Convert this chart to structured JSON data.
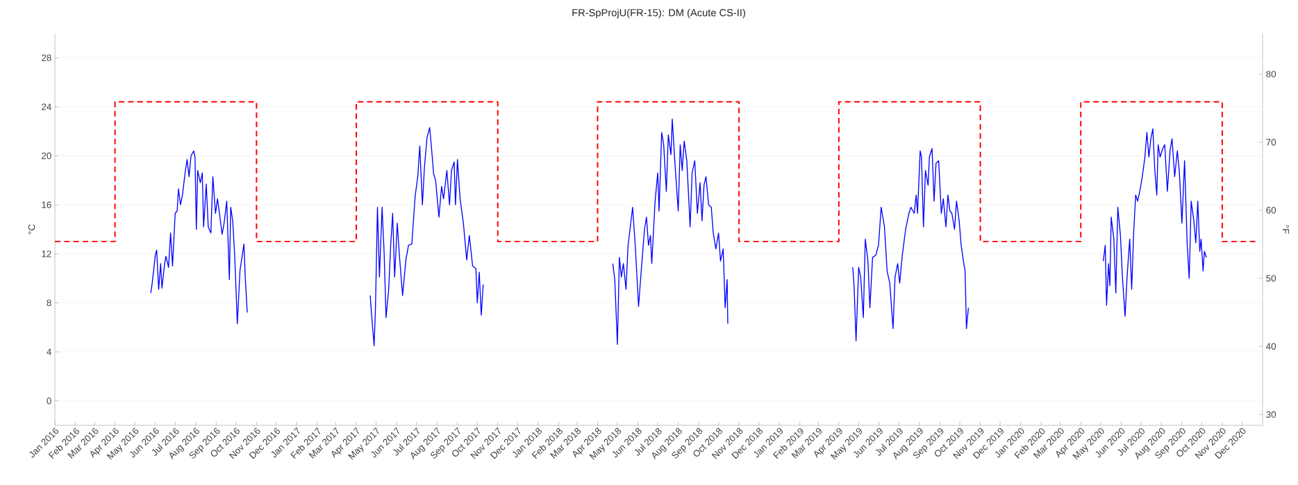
{
  "chart_data": {
    "type": "line",
    "title": "FR-SpProjU(FR-15): DM (Acute CS-II)",
    "ylabel": "°C",
    "y2label": "°F",
    "xlim": [
      "2016-01-01",
      "2021-01-01"
    ],
    "xticks": [
      {
        "value": "2016-01",
        "label": "Jan 2016"
      },
      {
        "value": "2016-02",
        "label": "Feb 2016"
      },
      {
        "value": "2016-03",
        "label": "Mar 2016"
      },
      {
        "value": "2016-04",
        "label": "Apr 2016"
      },
      {
        "value": "2016-05",
        "label": "May 2016"
      },
      {
        "value": "2016-06",
        "label": "Jun 2016"
      },
      {
        "value": "2016-07",
        "label": "Jul 2016"
      },
      {
        "value": "2016-08",
        "label": "Aug 2016"
      },
      {
        "value": "2016-09",
        "label": "Sep 2016"
      },
      {
        "value": "2016-10",
        "label": "Oct 2016"
      },
      {
        "value": "2016-11",
        "label": "Nov 2016"
      },
      {
        "value": "2016-12",
        "label": "Dec 2016"
      },
      {
        "value": "2017-01",
        "label": "Jan 2017"
      },
      {
        "value": "2017-02",
        "label": "Feb 2017"
      },
      {
        "value": "2017-03",
        "label": "Mar 2017"
      },
      {
        "value": "2017-04",
        "label": "Apr 2017"
      },
      {
        "value": "2017-05",
        "label": "May 2017"
      },
      {
        "value": "2017-06",
        "label": "Jun 2017"
      },
      {
        "value": "2017-07",
        "label": "Jul 2017"
      },
      {
        "value": "2017-08",
        "label": "Aug 2017"
      },
      {
        "value": "2017-09",
        "label": "Sep 2017"
      },
      {
        "value": "2017-10",
        "label": "Oct 2017"
      },
      {
        "value": "2017-11",
        "label": "Nov 2017"
      },
      {
        "value": "2017-12",
        "label": "Dec 2017"
      },
      {
        "value": "2018-01",
        "label": "Jan 2018"
      },
      {
        "value": "2018-02",
        "label": "Feb 2018"
      },
      {
        "value": "2018-03",
        "label": "Mar 2018"
      },
      {
        "value": "2018-04",
        "label": "Apr 2018"
      },
      {
        "value": "2018-05",
        "label": "May 2018"
      },
      {
        "value": "2018-06",
        "label": "Jun 2018"
      },
      {
        "value": "2018-07",
        "label": "Jul 2018"
      },
      {
        "value": "2018-08",
        "label": "Aug 2018"
      },
      {
        "value": "2018-09",
        "label": "Sep 2018"
      },
      {
        "value": "2018-10",
        "label": "Oct 2018"
      },
      {
        "value": "2018-11",
        "label": "Nov 2018"
      },
      {
        "value": "2018-12",
        "label": "Dec 2018"
      },
      {
        "value": "2019-01",
        "label": "Jan 2019"
      },
      {
        "value": "2019-02",
        "label": "Feb 2019"
      },
      {
        "value": "2019-03",
        "label": "Mar 2019"
      },
      {
        "value": "2019-04",
        "label": "Apr 2019"
      },
      {
        "value": "2019-05",
        "label": "May 2019"
      },
      {
        "value": "2019-06",
        "label": "Jun 2019"
      },
      {
        "value": "2019-07",
        "label": "Jul 2019"
      },
      {
        "value": "2019-08",
        "label": "Aug 2019"
      },
      {
        "value": "2019-09",
        "label": "Sep 2019"
      },
      {
        "value": "2019-10",
        "label": "Oct 2019"
      },
      {
        "value": "2019-11",
        "label": "Nov 2019"
      },
      {
        "value": "2019-12",
        "label": "Dec 2019"
      },
      {
        "value": "2020-01",
        "label": "Jan 2020"
      },
      {
        "value": "2020-02",
        "label": "Feb 2020"
      },
      {
        "value": "2020-03",
        "label": "Mar 2020"
      },
      {
        "value": "2020-04",
        "label": "Apr 2020"
      },
      {
        "value": "2020-05",
        "label": "May 2020"
      },
      {
        "value": "2020-06",
        "label": "Jun 2020"
      },
      {
        "value": "2020-07",
        "label": "Jul 2020"
      },
      {
        "value": "2020-08",
        "label": "Aug 2020"
      },
      {
        "value": "2020-09",
        "label": "Sep 2020"
      },
      {
        "value": "2020-10",
        "label": "Oct 2020"
      },
      {
        "value": "2020-11",
        "label": "Nov 2020"
      },
      {
        "value": "2020-12",
        "label": "Dec 2020"
      }
    ],
    "ylim": [
      -2,
      30
    ],
    "yticks": [
      0,
      4,
      8,
      12,
      16,
      20,
      24,
      28
    ],
    "y2lim": [
      28.4,
      86
    ],
    "y2ticks": [
      30,
      40,
      50,
      60,
      70,
      80
    ],
    "grid": "y",
    "series": [
      {
        "type": "step",
        "line_style": "dashed",
        "color": "#ff0000",
        "x": [
          "2016-01-01",
          "2016-04-01",
          "2016-11-01",
          "2017-04-01",
          "2017-11-01",
          "2018-04-01",
          "2018-11-01",
          "2019-04-01",
          "2019-11-01",
          "2020-04-01",
          "2020-11-01",
          "2020-12-22"
        ],
        "values": [
          13,
          24.4,
          13,
          24.4,
          13,
          24.4,
          13,
          24.4,
          13,
          24.4,
          13,
          13
        ]
      },
      {
        "color": "#0000ff",
        "x": [
          "2016-05-25",
          "2016-05-27",
          "2016-06-01",
          "2016-06-03",
          "2016-06-06",
          "2016-06-09",
          "2016-06-11",
          "2016-06-15",
          "2016-06-17",
          "2016-06-21",
          "2016-06-24",
          "2016-06-27",
          "2016-07-01",
          "2016-07-04",
          "2016-07-06",
          "2016-07-09",
          "2016-07-12",
          "2016-07-16",
          "2016-07-19",
          "2016-07-22",
          "2016-07-25",
          "2016-07-29",
          "2016-07-31",
          "2016-08-02",
          "2016-08-04",
          "2016-08-08",
          "2016-08-11",
          "2016-08-13",
          "2016-08-17",
          "2016-08-20",
          "2016-08-24",
          "2016-08-27",
          "2016-08-31",
          "2016-09-03",
          "2016-09-06",
          "2016-09-10",
          "2016-09-13",
          "2016-09-17",
          "2016-09-21",
          "2016-09-23",
          "2016-09-26",
          "2016-09-29",
          "2016-10-03",
          "2016-10-07",
          "2016-10-13",
          "2016-10-15",
          "2016-10-18"
        ],
        "values": [
          8.8,
          9.5,
          11.9,
          12.3,
          9.1,
          11.2,
          9.2,
          11.2,
          11.8,
          10.9,
          13.7,
          11.0,
          15.3,
          15.5,
          17.3,
          16.0,
          16.8,
          18.6,
          19.7,
          18.3,
          20.0,
          20.4,
          19.9,
          14.0,
          18.8,
          17.8,
          18.6,
          14.2,
          17.7,
          14.2,
          13.7,
          18.3,
          15.3,
          16.5,
          15.3,
          13.6,
          14.5,
          16.3,
          9.9,
          15.8,
          14.7,
          11.9,
          6.3,
          10.6,
          12.8,
          10.1,
          7.2
        ]
      },
      {
        "color": "#0000ff",
        "x": [
          "2017-04-22",
          "2017-04-24",
          "2017-04-28",
          "2017-04-30",
          "2017-05-03",
          "2017-05-06",
          "2017-05-10",
          "2017-05-13",
          "2017-05-16",
          "2017-05-20",
          "2017-05-23",
          "2017-05-26",
          "2017-05-29",
          "2017-06-02",
          "2017-06-05",
          "2017-06-10",
          "2017-06-15",
          "2017-06-19",
          "2017-06-24",
          "2017-06-29",
          "2017-07-03",
          "2017-07-06",
          "2017-07-10",
          "2017-07-13",
          "2017-07-17",
          "2017-07-21",
          "2017-07-24",
          "2017-07-27",
          "2017-07-30",
          "2017-08-04",
          "2017-08-08",
          "2017-08-11",
          "2017-08-16",
          "2017-08-20",
          "2017-08-23",
          "2017-08-27",
          "2017-08-29",
          "2017-09-01",
          "2017-09-05",
          "2017-09-10",
          "2017-09-15",
          "2017-09-19",
          "2017-09-24",
          "2017-09-29",
          "2017-10-01",
          "2017-10-04",
          "2017-10-07",
          "2017-10-10"
        ],
        "values": [
          8.6,
          7.1,
          4.5,
          7.6,
          15.8,
          10.1,
          15.8,
          12.2,
          6.8,
          9.1,
          12.7,
          15.3,
          10.1,
          14.5,
          12.0,
          8.6,
          11.5,
          12.7,
          12.8,
          16.7,
          18.3,
          20.8,
          16.0,
          19.0,
          21.5,
          22.3,
          20.5,
          18.5,
          18.0,
          15.0,
          17.5,
          16.5,
          18.8,
          16.0,
          18.8,
          19.5,
          16.0,
          19.7,
          16.5,
          14.5,
          11.5,
          13.5,
          11.0,
          10.8,
          8.0,
          10.5,
          7.0,
          9.5
        ]
      },
      {
        "color": "#0000ff",
        "x": [
          "2018-04-24",
          "2018-04-27",
          "2018-05-01",
          "2018-05-04",
          "2018-05-07",
          "2018-05-10",
          "2018-05-14",
          "2018-05-17",
          "2018-05-24",
          "2018-05-28",
          "2018-06-02",
          "2018-06-06",
          "2018-06-11",
          "2018-06-14",
          "2018-06-17",
          "2018-06-20",
          "2018-06-22",
          "2018-06-27",
          "2018-07-01",
          "2018-07-03",
          "2018-07-07",
          "2018-07-10",
          "2018-07-14",
          "2018-07-17",
          "2018-07-21",
          "2018-07-23",
          "2018-07-27",
          "2018-08-01",
          "2018-08-04",
          "2018-08-07",
          "2018-08-10",
          "2018-08-14",
          "2018-08-19",
          "2018-08-22",
          "2018-08-26",
          "2018-08-30",
          "2018-09-03",
          "2018-09-06",
          "2018-09-09",
          "2018-09-12",
          "2018-09-16",
          "2018-09-20",
          "2018-09-23",
          "2018-09-27",
          "2018-10-01",
          "2018-10-04",
          "2018-10-08",
          "2018-10-11",
          "2018-10-14",
          "2018-10-15"
        ],
        "values": [
          11.2,
          9.9,
          4.6,
          11.7,
          10.1,
          11.2,
          9.1,
          12.6,
          15.8,
          12.7,
          7.7,
          10.6,
          14.0,
          15.0,
          12.7,
          13.5,
          11.2,
          16.3,
          18.6,
          15.5,
          21.9,
          20.9,
          17.1,
          21.7,
          20.1,
          23.0,
          19.4,
          15.5,
          20.9,
          18.8,
          21.2,
          19.6,
          14.2,
          18.6,
          19.6,
          15.3,
          17.8,
          14.7,
          17.6,
          18.3,
          16.0,
          15.8,
          13.7,
          12.4,
          13.7,
          11.4,
          12.4,
          7.6,
          9.9,
          6.3
        ]
      },
      {
        "color": "#0000ff",
        "x": [
          "2019-04-22",
          "2019-04-24",
          "2019-04-27",
          "2019-05-01",
          "2019-05-04",
          "2019-05-08",
          "2019-05-11",
          "2019-05-15",
          "2019-05-18",
          "2019-05-22",
          "2019-05-27",
          "2019-05-31",
          "2019-06-04",
          "2019-06-09",
          "2019-06-13",
          "2019-06-17",
          "2019-06-22",
          "2019-06-25",
          "2019-06-29",
          "2019-07-02",
          "2019-07-06",
          "2019-07-11",
          "2019-07-16",
          "2019-07-19",
          "2019-07-24",
          "2019-07-27",
          "2019-07-29",
          "2019-08-02",
          "2019-08-04",
          "2019-08-07",
          "2019-08-10",
          "2019-08-14",
          "2019-08-16",
          "2019-08-20",
          "2019-08-23",
          "2019-08-26",
          "2019-08-30",
          "2019-09-03",
          "2019-09-06",
          "2019-09-10",
          "2019-09-13",
          "2019-09-16",
          "2019-09-19",
          "2019-09-23",
          "2019-09-26",
          "2019-09-30",
          "2019-10-03",
          "2019-10-07",
          "2019-10-09",
          "2019-10-11",
          "2019-10-14"
        ],
        "values": [
          10.9,
          9.4,
          4.9,
          10.9,
          10.1,
          6.8,
          13.2,
          11.4,
          7.6,
          11.7,
          11.9,
          12.7,
          15.8,
          14.2,
          10.6,
          9.6,
          5.9,
          10.1,
          11.2,
          9.6,
          11.9,
          14.0,
          15.3,
          15.8,
          15.3,
          16.8,
          15.3,
          20.4,
          19.9,
          14.2,
          18.8,
          17.6,
          19.9,
          20.6,
          16.3,
          19.4,
          19.6,
          15.3,
          16.5,
          14.2,
          16.8,
          15.5,
          15.3,
          14.0,
          16.3,
          14.7,
          12.7,
          11.2,
          10.6,
          5.9,
          7.6
        ]
      },
      {
        "color": "#0000ff",
        "x": [
          "2020-05-05",
          "2020-05-08",
          "2020-05-10",
          "2020-05-13",
          "2020-05-15",
          "2020-05-17",
          "2020-05-21",
          "2020-05-24",
          "2020-05-27",
          "2020-05-31",
          "2020-06-03",
          "2020-06-07",
          "2020-06-10",
          "2020-06-14",
          "2020-06-17",
          "2020-06-20",
          "2020-06-23",
          "2020-06-26",
          "2020-06-30",
          "2020-07-03",
          "2020-07-07",
          "2020-07-10",
          "2020-07-13",
          "2020-07-16",
          "2020-07-19",
          "2020-07-22",
          "2020-07-25",
          "2020-07-27",
          "2020-07-30",
          "2020-08-03",
          "2020-08-06",
          "2020-08-10",
          "2020-08-14",
          "2020-08-17",
          "2020-08-21",
          "2020-08-25",
          "2020-08-28",
          "2020-09-01",
          "2020-09-05",
          "2020-09-09",
          "2020-09-12",
          "2020-09-15",
          "2020-09-19",
          "2020-09-22",
          "2020-09-25",
          "2020-09-28",
          "2020-09-30",
          "2020-10-03",
          "2020-10-05",
          "2020-10-08"
        ],
        "values": [
          11.4,
          12.7,
          7.8,
          11.2,
          9.4,
          15.0,
          13.2,
          8.8,
          15.8,
          13.5,
          10.1,
          6.9,
          10.1,
          13.2,
          9.1,
          13.7,
          16.8,
          16.3,
          17.3,
          18.3,
          19.9,
          21.9,
          19.9,
          21.4,
          22.2,
          18.8,
          16.8,
          20.9,
          19.9,
          20.6,
          20.9,
          17.1,
          20.4,
          21.4,
          18.3,
          20.4,
          18.8,
          14.5,
          19.6,
          12.7,
          10.0,
          16.3,
          14.7,
          12.9,
          16.3,
          12.2,
          13.2,
          10.6,
          12.2,
          11.7
        ]
      }
    ]
  }
}
